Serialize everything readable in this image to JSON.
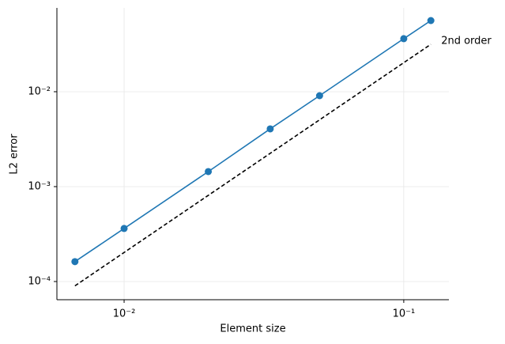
{
  "chart_data": {
    "type": "line",
    "x_label": "Element size",
    "y_label": "L2 error",
    "log_x": true,
    "log_y": true,
    "grid": true,
    "xlim": [
      0.00575,
      0.145
    ],
    "ylim": [
      6.43e-05,
      0.0764
    ],
    "xticks": [
      {
        "value": 0.01,
        "label": "10⁻²"
      },
      {
        "value": 0.1,
        "label": "10⁻¹"
      }
    ],
    "yticks": [
      {
        "value": 0.0001,
        "label": "10⁻⁴"
      },
      {
        "value": 0.001,
        "label": "10⁻³"
      },
      {
        "value": 0.01,
        "label": "10⁻²"
      }
    ],
    "series": [
      {
        "color": "#1f77b4",
        "markers": true,
        "dashed": false,
        "x": [
          0.00667,
          0.01,
          0.02,
          0.0333,
          0.05,
          0.1,
          0.125
        ],
        "values": [
          0.000162,
          0.000362,
          0.00144,
          0.00406,
          0.00908,
          0.0362,
          0.0562
        ]
      },
      {
        "color": "#000000",
        "markers": false,
        "dashed": true,
        "x": [
          0.00667,
          0.125
        ],
        "values": [
          9e-05,
          0.0316
        ]
      }
    ],
    "annotations": [
      {
        "text": "2nd order",
        "x": 0.125,
        "y": 0.0316
      }
    ]
  }
}
